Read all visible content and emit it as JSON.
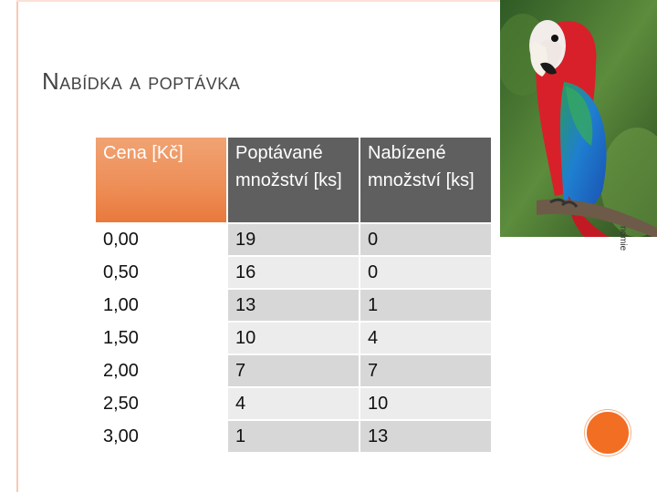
{
  "title": "Nabídka a poptávka",
  "table": {
    "headers": [
      "Cena [Kč]",
      "Poptávané množství [ks]",
      "Nabízené množství [ks]"
    ],
    "rows": [
      [
        "0,00",
        "19",
        "0"
      ],
      [
        "0,50",
        "16",
        "0"
      ],
      [
        "1,00",
        "13",
        "1"
      ],
      [
        "1,50",
        "10",
        "4"
      ],
      [
        "2,00",
        "7",
        "7"
      ],
      [
        "2,50",
        "4",
        "10"
      ],
      [
        "3,00",
        "1",
        "13"
      ]
    ]
  },
  "image_credit": "nomie",
  "colors": {
    "accent_orange": "#ee8d56",
    "header_gray": "#5f5f5f",
    "circle_orange": "#f26e22"
  }
}
